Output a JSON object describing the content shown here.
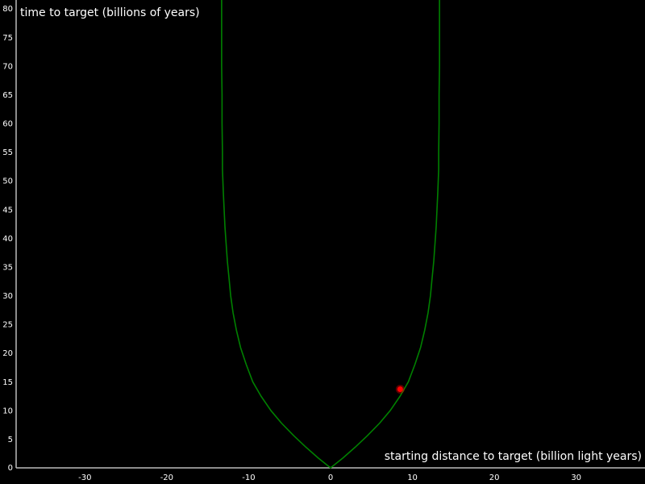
{
  "chart_data": {
    "type": "line",
    "title": "",
    "xlabel": "starting distance to target (billion light years)",
    "ylabel": "time to target (billions of years)",
    "xlim": [
      -38.4,
      38.4
    ],
    "ylim": [
      0,
      81.5
    ],
    "x_ticks": [
      -30,
      -20,
      -10,
      0,
      10,
      20,
      30
    ],
    "y_ticks": [
      0,
      5,
      10,
      15,
      20,
      25,
      30,
      35,
      40,
      45,
      50,
      55,
      60,
      65,
      70,
      75,
      80
    ],
    "grid": false,
    "legend": "none",
    "series": [
      {
        "color": "#008000",
        "points": [
          [
            -13.3,
            81.5
          ],
          [
            -13.3,
            80.0
          ],
          [
            -13.3,
            75.0
          ],
          [
            -13.3,
            70.0
          ],
          [
            -13.25,
            65.0
          ],
          [
            -13.25,
            60.0
          ],
          [
            -13.2,
            55.0
          ],
          [
            -13.2,
            52.0
          ],
          [
            -13.1,
            48.0
          ],
          [
            -13.0,
            45.0
          ],
          [
            -12.9,
            42.0
          ],
          [
            -12.75,
            39.0
          ],
          [
            -12.6,
            36.0
          ],
          [
            -12.4,
            33.0
          ],
          [
            -12.2,
            30.0
          ],
          [
            -11.9,
            27.0
          ],
          [
            -11.5,
            24.0
          ],
          [
            -11.0,
            21.0
          ],
          [
            -10.3,
            18.0
          ],
          [
            -9.5,
            15.0
          ],
          [
            -8.5,
            12.5
          ],
          [
            -7.3,
            10.0
          ],
          [
            -6.0,
            7.8
          ],
          [
            -4.5,
            5.6
          ],
          [
            -3.0,
            3.6
          ],
          [
            -1.5,
            1.7
          ],
          [
            0,
            0
          ],
          [
            1.5,
            1.7
          ],
          [
            3.0,
            3.6
          ],
          [
            4.5,
            5.6
          ],
          [
            6.0,
            7.8
          ],
          [
            7.3,
            10.0
          ],
          [
            8.5,
            12.5
          ],
          [
            9.5,
            15.0
          ],
          [
            10.3,
            18.0
          ],
          [
            11.0,
            21.0
          ],
          [
            11.5,
            24.0
          ],
          [
            11.9,
            27.0
          ],
          [
            12.2,
            30.0
          ],
          [
            12.4,
            33.0
          ],
          [
            12.6,
            36.0
          ],
          [
            12.75,
            39.0
          ],
          [
            12.9,
            42.0
          ],
          [
            13.0,
            45.0
          ],
          [
            13.1,
            48.0
          ],
          [
            13.2,
            52.0
          ],
          [
            13.2,
            55.0
          ],
          [
            13.25,
            60.0
          ],
          [
            13.25,
            65.0
          ],
          [
            13.3,
            70.0
          ],
          [
            13.3,
            75.0
          ],
          [
            13.3,
            80.0
          ],
          [
            13.3,
            81.5
          ]
        ]
      }
    ],
    "marker": {
      "x": 8.5,
      "y": 13.7,
      "color": "#ff0000"
    },
    "axis_color": "#bbbbbb",
    "background": "#000000",
    "text_color": "#ffffff"
  }
}
